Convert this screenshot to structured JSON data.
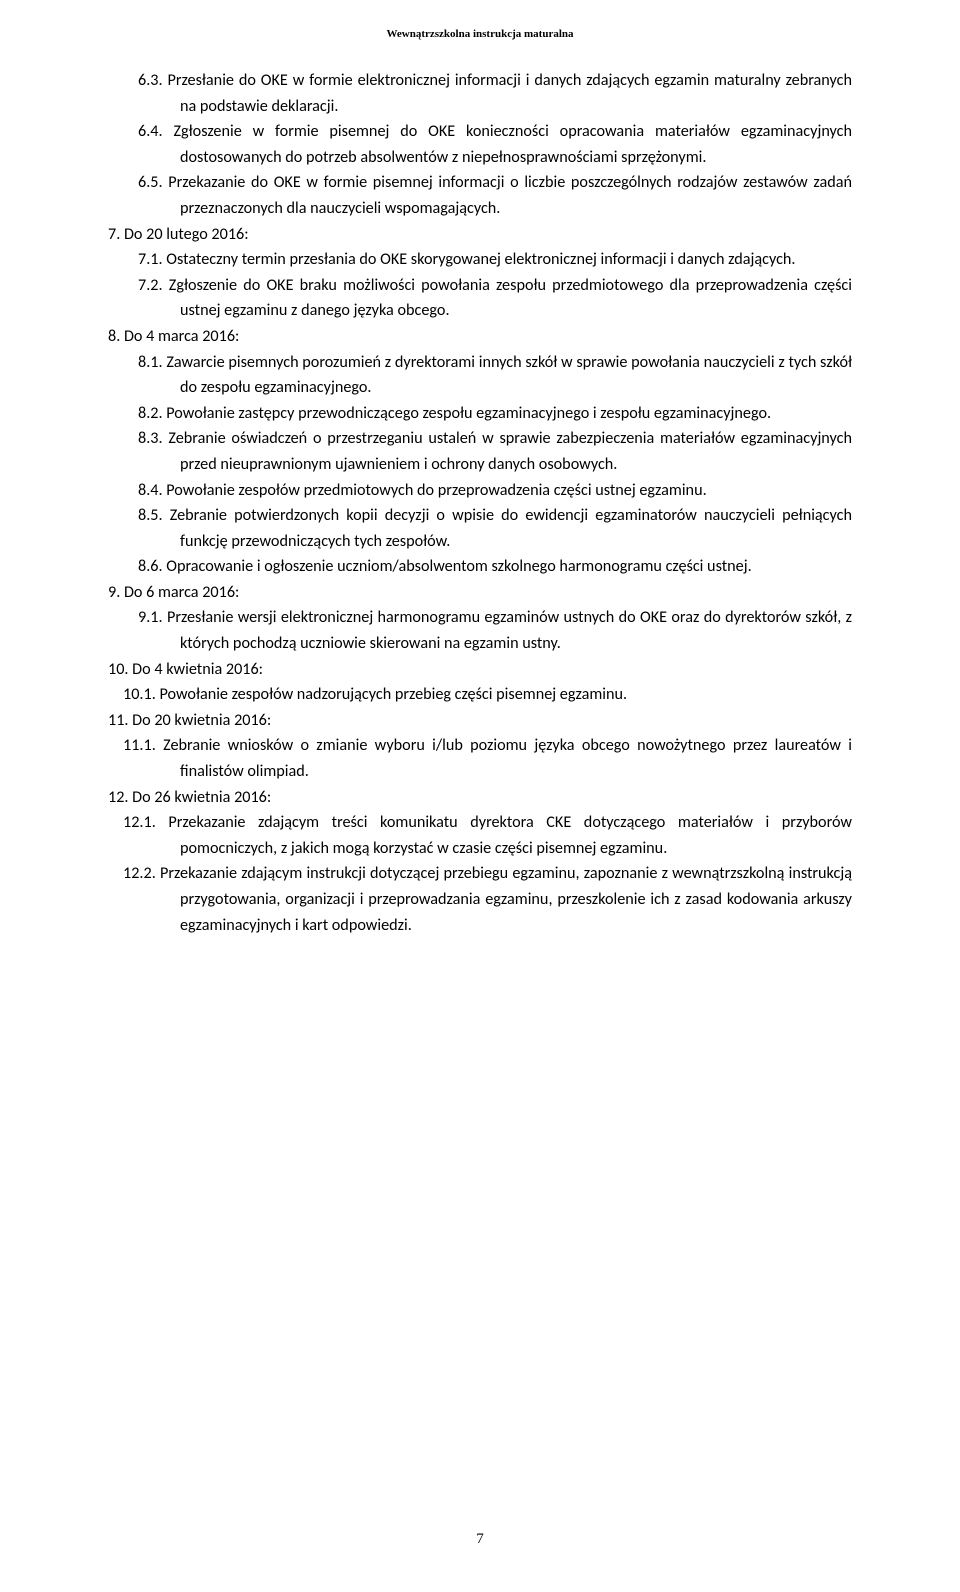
{
  "header": "Wewnątrzszkolna instrukcja maturalna",
  "items": [
    {
      "cls": "l1",
      "num": "6.3.",
      "text": "Przesłanie do OKE w formie elektronicznej informacji i danych zdających egzamin maturalny zebranych na podstawie deklaracji."
    },
    {
      "cls": "l1",
      "num": "6.4.",
      "text": "Zgłoszenie w formie pisemnej do OKE konieczności opracowania materiałów egzaminacyjnych dostosowanych do potrzeb absolwentów z niepełnosprawnościami sprzężonymi."
    },
    {
      "cls": "l1",
      "num": "6.5.",
      "text": "Przekazanie do OKE w formie pisemnej informacji o liczbie poszczególnych rodzajów zestawów zadań przeznaczonych dla nauczycieli wspomagających."
    },
    {
      "cls": "l0",
      "num": "7.",
      "text": "Do 20 lutego 2016:"
    },
    {
      "cls": "l1",
      "num": "7.1.",
      "text": "Ostateczny termin przesłania do OKE skorygowanej elektronicznej informacji i danych zdających."
    },
    {
      "cls": "l1",
      "num": "7.2.",
      "text": "Zgłoszenie do OKE braku możliwości powołania zespołu przedmiotowego dla przeprowadzenia części ustnej egzaminu z danego języka obcego."
    },
    {
      "cls": "l0",
      "num": "8.",
      "text": "Do 4 marca 2016:"
    },
    {
      "cls": "l1",
      "num": "8.1.",
      "text": "Zawarcie pisemnych porozumień z dyrektorami innych szkół w sprawie powołania nauczycieli z tych szkół do zespołu egzaminacyjnego."
    },
    {
      "cls": "l1",
      "num": "8.2.",
      "text": "Powołanie zastępcy przewodniczącego zespołu egzaminacyjnego i zespołu egzaminacyjnego."
    },
    {
      "cls": "l1",
      "num": "8.3.",
      "text": "Zebranie oświadczeń o przestrzeganiu ustaleń w sprawie zabezpieczenia materiałów egzaminacyjnych przed nieuprawnionym ujawnieniem i ochrony danych osobowych."
    },
    {
      "cls": "l1",
      "num": "8.4.",
      "text": "Powołanie zespołów przedmiotowych do przeprowadzenia części ustnej egzaminu."
    },
    {
      "cls": "l1",
      "num": "8.5.",
      "text": "Zebranie potwierdzonych kopii decyzji o wpisie do ewidencji egzaminatorów nauczycieli pełniących funkcję przewodniczących tych zespołów."
    },
    {
      "cls": "l1",
      "num": "8.6.",
      "text": "Opracowanie i ogłoszenie uczniom/absolwentom szkolnego harmonogramu części ustnej."
    },
    {
      "cls": "l0",
      "num": "9.",
      "text": "Do 6 marca 2016:"
    },
    {
      "cls": "l1",
      "num": "9.1.",
      "text": "Przesłanie wersji elektronicznej harmonogramu egzaminów ustnych do OKE oraz do dyrektorów szkół, z których pochodzą uczniowie skierowani na egzamin ustny."
    },
    {
      "cls": "l0b",
      "num": "10.",
      "text": "Do 4 kwietnia 2016:"
    },
    {
      "cls": "l1b",
      "num": "10.1.",
      "text": "     Powołanie zespołów nadzorujących przebieg części pisemnej egzaminu."
    },
    {
      "cls": "l0b",
      "num": "11.",
      "text": "Do 20 kwietnia 2016:"
    },
    {
      "cls": "l1b",
      "num": "11.1.",
      "text": " Zebranie wniosków o zmianie wyboru i/lub poziomu języka obcego nowożytnego przez laureatów i finalistów olimpiad."
    },
    {
      "cls": "l0b",
      "num": "12.",
      "text": "Do 26 kwietnia 2016:"
    },
    {
      "cls": "l1b",
      "num": "12.1.",
      "text": " Przekazanie zdającym treści komunikatu dyrektora CKE dotyczącego materiałów i przyborów pomocniczych, z jakich mogą korzystać w czasie części pisemnej egzaminu."
    },
    {
      "cls": "l1b",
      "num": "12.2.",
      "text": " Przekazanie zdającym instrukcji dotyczącej przebiegu egzaminu, zapoznanie z wewnątrzszkolną instrukcją przygotowania, organizacji i przeprowadzania egzaminu, przeszkolenie ich z zasad kodowania arkuszy egzaminacyjnych i kart odpowiedzi."
    }
  ],
  "page_number": "7"
}
